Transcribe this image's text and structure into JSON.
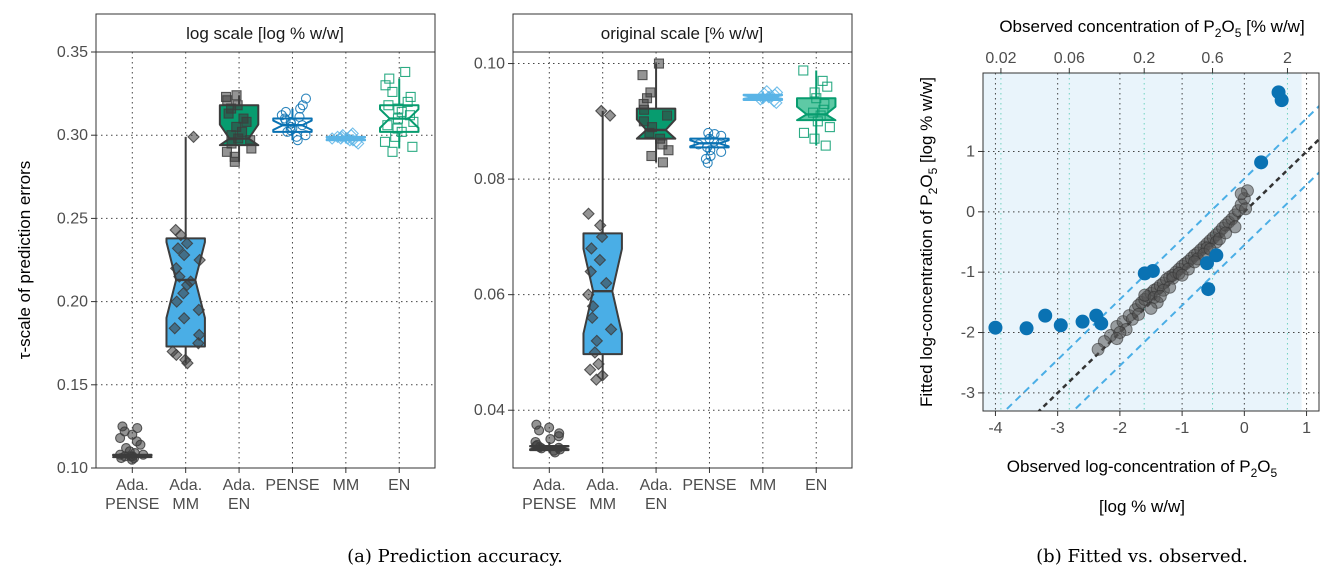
{
  "colors": {
    "dark": "#3d3d3d",
    "green": "#079c6f",
    "green_light": "#5ec9a5",
    "blue": "#0a72b3",
    "blue_light": "#5ab4e6",
    "midblue": "#4aaee6",
    "band": "#e9f4fb"
  },
  "captions": {
    "a": "(a) Prediction accuracy.",
    "b": "(b) Fitted vs. observed."
  },
  "chart_data": [
    {
      "type": "box",
      "title": "log scale [log % w/w]",
      "ylabel": "τ-scale of prediction errors",
      "xlabel": "",
      "ylim": [
        0.1,
        0.35
      ],
      "yticks": [
        "0.10",
        "0.15",
        "0.20",
        "0.25",
        "0.30",
        "0.35"
      ],
      "categories": [
        [
          "Ada.",
          "PENSE"
        ],
        [
          "Ada.",
          "MM"
        ],
        [
          "Ada.",
          "EN"
        ],
        [
          "PENSE"
        ],
        [
          "MM"
        ],
        [
          "EN"
        ]
      ],
      "boxes": [
        {
          "q1": 0.1065,
          "median": 0.107,
          "q3": 0.108,
          "whisker_low": 0.1055,
          "whisker_high": 0.109,
          "color": "dark",
          "fill": "dark",
          "marker": "circle",
          "points": [
            0.105,
            0.106,
            0.106,
            0.107,
            0.107,
            0.107,
            0.108,
            0.108,
            0.109,
            0.11,
            0.112,
            0.114,
            0.116,
            0.118,
            0.12,
            0.122,
            0.124,
            0.125
          ]
        },
        {
          "q1": 0.173,
          "median": 0.213,
          "q3": 0.238,
          "whisker_low": 0.163,
          "whisker_high": 0.299,
          "color": "dark",
          "fill": "midblue",
          "marker": "diamond",
          "points": [
            0.163,
            0.165,
            0.168,
            0.17,
            0.175,
            0.18,
            0.184,
            0.19,
            0.195,
            0.2,
            0.205,
            0.21,
            0.212,
            0.215,
            0.22,
            0.225,
            0.228,
            0.232,
            0.235,
            0.24,
            0.243,
            0.299
          ]
        },
        {
          "q1": 0.294,
          "median": 0.298,
          "q3": 0.318,
          "whisker_low": 0.284,
          "whisker_high": 0.324,
          "color": "dark",
          "fill": "green",
          "marker": "square",
          "points": [
            0.284,
            0.287,
            0.29,
            0.292,
            0.295,
            0.297,
            0.298,
            0.3,
            0.302,
            0.305,
            0.308,
            0.31,
            0.313,
            0.316,
            0.318,
            0.321,
            0.323,
            0.324
          ]
        },
        {
          "q1": 0.302,
          "median": 0.306,
          "q3": 0.31,
          "whisker_low": 0.297,
          "whisker_high": 0.316,
          "color": "blue",
          "fill": "none",
          "marker": "circle-open",
          "points": [
            0.297,
            0.299,
            0.3,
            0.302,
            0.303,
            0.304,
            0.305,
            0.306,
            0.307,
            0.308,
            0.309,
            0.31,
            0.311,
            0.312,
            0.314,
            0.316,
            0.318,
            0.322
          ]
        },
        {
          "q1": 0.297,
          "median": 0.298,
          "q3": 0.299,
          "whisker_low": 0.295,
          "whisker_high": 0.301,
          "color": "blue_light",
          "fill": "blue_light",
          "marker": "diamond-open",
          "points": [
            0.295,
            0.296,
            0.297,
            0.297,
            0.298,
            0.298,
            0.298,
            0.299,
            0.299,
            0.3,
            0.3,
            0.301
          ]
        },
        {
          "q1": 0.302,
          "median": 0.31,
          "q3": 0.318,
          "whisker_low": 0.292,
          "whisker_high": 0.334,
          "color": "green",
          "fill": "none",
          "marker": "square-open",
          "points": [
            0.29,
            0.293,
            0.296,
            0.299,
            0.302,
            0.304,
            0.306,
            0.308,
            0.31,
            0.312,
            0.314,
            0.316,
            0.318,
            0.32,
            0.323,
            0.326,
            0.33,
            0.334,
            0.338
          ]
        }
      ]
    },
    {
      "type": "box",
      "title": "original scale [% w/w]",
      "ylabel": "",
      "xlabel": "",
      "ylim": [
        0.03,
        0.102
      ],
      "yticks": [
        "0.04",
        "0.06",
        "0.08",
        "0.10"
      ],
      "categories": [
        [
          "Ada.",
          "PENSE"
        ],
        [
          "Ada.",
          "MM"
        ],
        [
          "Ada.",
          "EN"
        ],
        [
          "PENSE"
        ],
        [
          "MM"
        ],
        [
          "EN"
        ]
      ],
      "boxes": [
        {
          "q1": 0.0331,
          "median": 0.0335,
          "q3": 0.0338,
          "whisker_low": 0.0327,
          "whisker_high": 0.0345,
          "color": "dark",
          "fill": "dark",
          "marker": "circle",
          "points": [
            0.0327,
            0.033,
            0.0332,
            0.0334,
            0.0335,
            0.0336,
            0.0338,
            0.034,
            0.0345,
            0.035,
            0.0355,
            0.036,
            0.0365,
            0.037,
            0.0375
          ]
        },
        {
          "q1": 0.0497,
          "median": 0.0606,
          "q3": 0.0706,
          "whisker_low": 0.0453,
          "whisker_high": 0.0918,
          "color": "dark",
          "fill": "midblue",
          "marker": "diamond",
          "points": [
            0.0453,
            0.046,
            0.047,
            0.048,
            0.05,
            0.052,
            0.054,
            0.056,
            0.058,
            0.06,
            0.062,
            0.064,
            0.066,
            0.068,
            0.07,
            0.072,
            0.074,
            0.091,
            0.0918
          ]
        },
        {
          "q1": 0.087,
          "median": 0.0885,
          "q3": 0.0922,
          "whisker_low": 0.0829,
          "whisker_high": 0.1,
          "color": "dark",
          "fill": "green",
          "marker": "square",
          "points": [
            0.0829,
            0.084,
            0.085,
            0.086,
            0.087,
            0.088,
            0.089,
            0.09,
            0.091,
            0.092,
            0.093,
            0.094,
            0.095,
            0.098,
            0.1
          ]
        },
        {
          "q1": 0.0855,
          "median": 0.0862,
          "q3": 0.087,
          "whisker_low": 0.0847,
          "whisker_high": 0.0878,
          "color": "blue",
          "fill": "none",
          "marker": "circle-open",
          "points": [
            0.0828,
            0.0835,
            0.084,
            0.0847,
            0.085,
            0.0855,
            0.086,
            0.0862,
            0.0865,
            0.087,
            0.0875,
            0.0878,
            0.088
          ]
        },
        {
          "q1": 0.0937,
          "median": 0.0942,
          "q3": 0.0946,
          "whisker_low": 0.0932,
          "whisker_high": 0.0952,
          "color": "blue_light",
          "fill": "blue_light",
          "marker": "diamond-open",
          "points": [
            0.0932,
            0.0935,
            0.0938,
            0.094,
            0.0942,
            0.0944,
            0.0946,
            0.0948,
            0.095,
            0.0952
          ]
        },
        {
          "q1": 0.0902,
          "median": 0.0912,
          "q3": 0.094,
          "whisker_low": 0.0858,
          "whisker_high": 0.0988,
          "color": "green",
          "fill": "green_light",
          "marker": "square-open",
          "points": [
            0.0858,
            0.087,
            0.088,
            0.089,
            0.09,
            0.091,
            0.0915,
            0.092,
            0.093,
            0.094,
            0.095,
            0.096,
            0.097,
            0.0988
          ]
        }
      ]
    },
    {
      "type": "scatter",
      "xlabel": [
        "Observed log-concentration of P",
        "2",
        "O",
        "5",
        "[log % w/w]"
      ],
      "ylabel": [
        "Fitted log-concentration of P",
        "2",
        "O",
        "5",
        " [log % w/w]"
      ],
      "top_xlabel": [
        "Observed concentration of P",
        "2",
        "O",
        "5",
        " [% w/w]"
      ],
      "xlim": [
        -4.2,
        1.2
      ],
      "ylim": [
        -3.3,
        2.3
      ],
      "xticks": [
        "-4",
        "-3",
        "-2",
        "-1",
        "0",
        "1"
      ],
      "yticks": [
        "-3",
        "-2",
        "-1",
        "0",
        "1"
      ],
      "top_ticks": [
        "0.02",
        "0.06",
        "0.2",
        "0.6",
        "2"
      ],
      "band_xlim": [
        -4.2,
        0.92
      ],
      "identity_line": true,
      "offset_lines": [
        0.55,
        -0.55
      ],
      "inner_points": [
        [
          -2.05,
          -1.9
        ],
        [
          -1.95,
          -1.82
        ],
        [
          -1.85,
          -1.72
        ],
        [
          -1.75,
          -1.62
        ],
        [
          -1.7,
          -1.55
        ],
        [
          -1.65,
          -1.5
        ],
        [
          -1.6,
          -1.45
        ],
        [
          -1.55,
          -1.4
        ],
        [
          -1.5,
          -1.35
        ],
        [
          -1.45,
          -1.3
        ],
        [
          -1.4,
          -1.27
        ],
        [
          -1.35,
          -1.22
        ],
        [
          -1.3,
          -1.18
        ],
        [
          -1.25,
          -1.12
        ],
        [
          -1.2,
          -1.08
        ],
        [
          -1.15,
          -1.05
        ],
        [
          -1.1,
          -1.0
        ],
        [
          -1.05,
          -0.95
        ],
        [
          -1.0,
          -0.9
        ],
        [
          -0.95,
          -0.86
        ],
        [
          -0.9,
          -0.82
        ],
        [
          -0.85,
          -0.77
        ],
        [
          -0.8,
          -0.72
        ],
        [
          -0.75,
          -0.68
        ],
        [
          -0.7,
          -0.63
        ],
        [
          -0.65,
          -0.58
        ],
        [
          -0.6,
          -0.53
        ],
        [
          -0.55,
          -0.48
        ],
        [
          -0.5,
          -0.43
        ],
        [
          -0.45,
          -0.38
        ],
        [
          -0.4,
          -0.33
        ],
        [
          -0.35,
          -0.27
        ],
        [
          -0.3,
          -0.22
        ],
        [
          -0.25,
          -0.17
        ],
        [
          -0.2,
          -0.12
        ],
        [
          -0.15,
          -0.05
        ],
        [
          -0.1,
          0.02
        ],
        [
          -0.05,
          0.12
        ],
        [
          0.0,
          0.22
        ],
        [
          0.05,
          0.35
        ],
        [
          -1.8,
          -1.78
        ],
        [
          -1.6,
          -1.38
        ],
        [
          -1.45,
          -1.42
        ],
        [
          -1.3,
          -1.3
        ],
        [
          -1.15,
          -1.1
        ],
        [
          -1.05,
          -1.02
        ],
        [
          -0.9,
          -0.95
        ],
        [
          -0.75,
          -0.78
        ],
        [
          -0.6,
          -0.6
        ],
        [
          -0.45,
          -0.5
        ],
        [
          -2.15,
          -2.05
        ],
        [
          -2.25,
          -2.15
        ],
        [
          -2.35,
          -2.28
        ],
        [
          -1.4,
          -1.5
        ],
        [
          -1.2,
          -1.25
        ],
        [
          -0.8,
          -0.83
        ],
        [
          -0.65,
          -0.7
        ],
        [
          -0.4,
          -0.45
        ],
        [
          -0.15,
          -0.25
        ],
        [
          0.02,
          0.05
        ],
        [
          -1.5,
          -1.6
        ],
        [
          -1.7,
          -1.7
        ],
        [
          -1.9,
          -1.95
        ],
        [
          -2.0,
          -2.0
        ],
        [
          -1.35,
          -1.4
        ],
        [
          -1.0,
          -1.05
        ],
        [
          -0.55,
          -0.62
        ],
        [
          -0.3,
          -0.35
        ],
        [
          -0.05,
          0.3
        ],
        [
          -2.05,
          -2.1
        ]
      ],
      "outlier_points": [
        [
          -4.0,
          -1.92
        ],
        [
          -3.5,
          -1.93
        ],
        [
          -3.2,
          -1.72
        ],
        [
          -2.95,
          -1.88
        ],
        [
          -2.6,
          -1.82
        ],
        [
          -2.38,
          -1.72
        ],
        [
          -2.3,
          -1.85
        ],
        [
          -1.6,
          -1.02
        ],
        [
          -1.47,
          -0.98
        ],
        [
          -0.6,
          -0.85
        ],
        [
          -0.58,
          -1.28
        ],
        [
          -0.45,
          -0.72
        ],
        [
          0.27,
          0.82
        ],
        [
          0.55,
          1.98
        ],
        [
          0.6,
          1.85
        ]
      ]
    }
  ]
}
